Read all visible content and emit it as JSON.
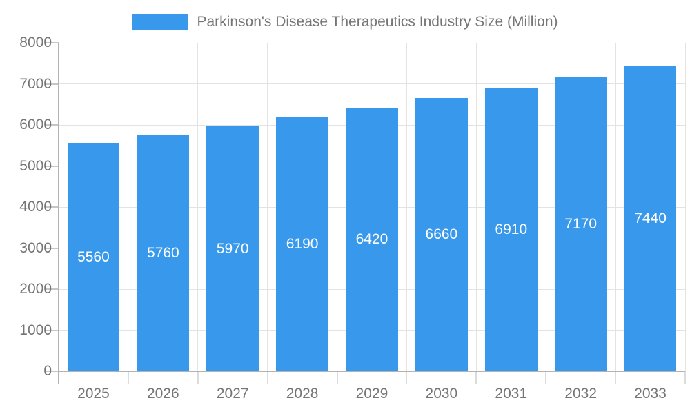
{
  "chart_data": {
    "type": "bar",
    "title": "Parkinson's Disease Therapeutics Industry Size (Million)",
    "categories": [
      "2025",
      "2026",
      "2027",
      "2028",
      "2029",
      "2030",
      "2031",
      "2032",
      "2033"
    ],
    "values": [
      5560,
      5760,
      5970,
      6190,
      6420,
      6660,
      6910,
      7170,
      7440
    ],
    "xlabel": "",
    "ylabel": "",
    "ylim": [
      0,
      8000
    ],
    "ytick_step": 1000,
    "ytick_labels": [
      "0",
      "1000",
      "2000",
      "3000",
      "4000",
      "5000",
      "6000",
      "7000",
      "8000"
    ],
    "grid": true,
    "legend_position": "top",
    "bar_labels_visible": true,
    "style": {
      "bar_color": "#3899EC",
      "grid_color": "#E3E3E3",
      "axis_color": "#B3B3B3",
      "tick_color": "#C6C6C6",
      "boundary_tick_color": "#DCDCDC",
      "label_color": "#757575",
      "bar_label_color": "#FFFFFF",
      "background": "#FFFFFF"
    }
  }
}
